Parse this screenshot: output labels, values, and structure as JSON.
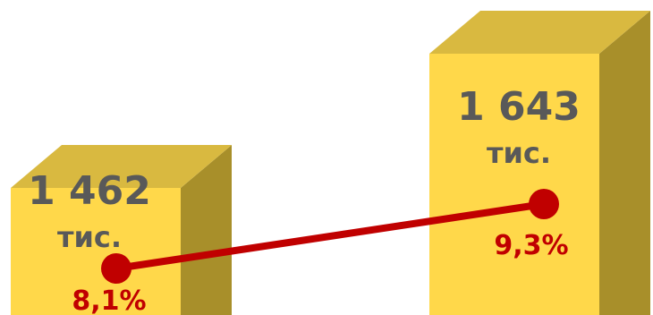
{
  "chart_data": {
    "type": "bar",
    "style": "3d-box",
    "grid": false,
    "categories": [
      "",
      ""
    ],
    "series": [
      {
        "values": [
          1462,
          1643
        ],
        "value_labels": [
          "1 462",
          "1 643"
        ],
        "unit_labels": [
          "тис.",
          "тис."
        ],
        "color": "#ffd84a"
      },
      {
        "type": "line",
        "values": [
          8.1,
          9.3
        ],
        "labels": [
          "8,1%",
          "9,3%"
        ],
        "color": "#c00000"
      }
    ]
  },
  "colors": {
    "bar_front": "#ffd84a",
    "bar_top": "#d9b940",
    "bar_side": "#a88f2a",
    "value_text": "#595959",
    "line": "#c00000",
    "pct_text": "#c00000"
  }
}
